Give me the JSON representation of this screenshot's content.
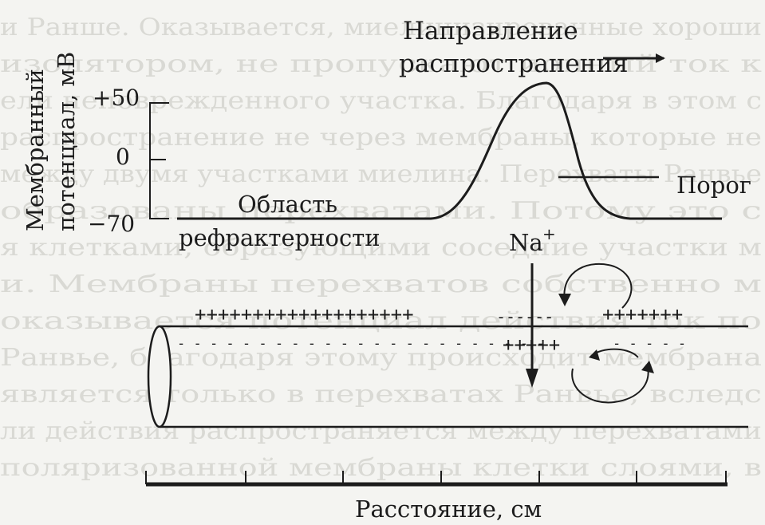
{
  "background_text": {
    "lines": [
      "и Ранше. Оказывается, миелинизированные хороши",
      "изолятором, не пропускают ионный ток к",
      "ели неповрежденного участка. Благодаря в этом с",
      "распространение не через мембраны, которые не",
      "между двумя участками миелина. Перехваты Ранвье",
      "образованы перехватами. Потому это с",
      "я клетками, образующими соседние участки м",
      "и. Мембраны перехватов собственно м",
      "оказывается потенциал действия ток по",
      "Ранвье, благодаря этому происходит мембрана",
      "является только в перехватах Ранвье, вследс",
      "ли действия распространяется между перехватами",
      "поляризованной мембраны клетки слоями, в"
    ]
  },
  "labels": {
    "direction_line1": "Направление",
    "direction_line2": "распространения",
    "threshold": "Порог",
    "refractory_line1": "Область",
    "refractory_line2": "рефрактерности",
    "ion": "Na",
    "ion_charge": "+",
    "y_axis_line1": "Мембранный",
    "y_axis_line2": "потенциал,  мВ",
    "x_axis": "Расстояние,  см"
  },
  "y_ticks": [
    "+50",
    "0",
    "−70"
  ],
  "axon_signs": {
    "outer_left": "+++++++++++++++++++",
    "outer_mid": "------",
    "outer_right": "+++++++",
    "inner_left": "- - - - - - - - - - - - - - - - - - - - - - -",
    "inner_mid": "+++++",
    "inner_right": "- - - - -"
  },
  "chart_data": {
    "type": "line",
    "ylabel": "Мембранный потенциал, мВ",
    "xlabel": "Расстояние, см",
    "y_ticks": [
      50,
      0,
      -70
    ],
    "ylim": [
      -70,
      50
    ],
    "series": [
      {
        "resting": -70,
        "peak": 50,
        "threshold_label": "Порог"
      }
    ]
  },
  "colors": {
    "ink": "#1c1c1c",
    "paper": "#f4f4f1",
    "ghost_text": "#d9d9d4"
  }
}
